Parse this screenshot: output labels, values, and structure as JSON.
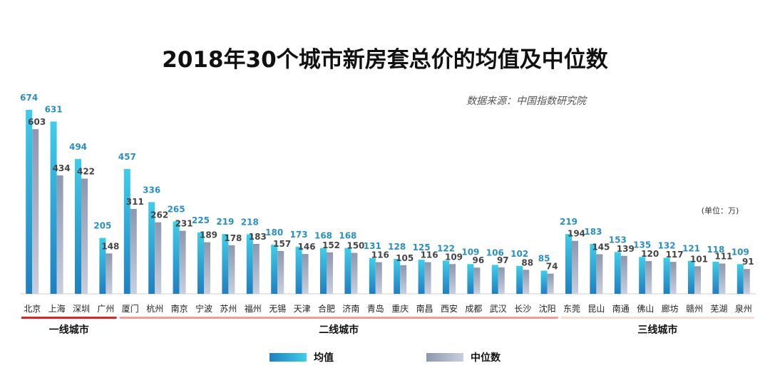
{
  "chart_data": {
    "type": "bar",
    "title": "2018年30个城市新房套总价的均值及中位数",
    "source": "数据来源：中国指数研究院",
    "unit": "(单位：万)",
    "categories": [
      "北京",
      "上海",
      "深圳",
      "广州",
      "厦门",
      "杭州",
      "南京",
      "宁波",
      "苏州",
      "福州",
      "无锡",
      "天津",
      "合肥",
      "济南",
      "青岛",
      "重庆",
      "南昌",
      "西安",
      "成都",
      "武汉",
      "长沙",
      "沈阳",
      "东莞",
      "昆山",
      "南通",
      "佛山",
      "廊坊",
      "赣州",
      "芜湖",
      "泉州"
    ],
    "series": [
      {
        "name": "均值",
        "values": [
          674,
          631,
          494,
          205,
          457,
          336,
          265,
          225,
          219,
          218,
          180,
          173,
          168,
          168,
          131,
          128,
          125,
          122,
          109,
          106,
          102,
          85,
          219,
          183,
          153,
          135,
          132,
          121,
          118,
          109
        ]
      },
      {
        "name": "中位数",
        "values": [
          603,
          434,
          422,
          148,
          311,
          262,
          231,
          189,
          178,
          183,
          157,
          146,
          152,
          150,
          116,
          105,
          116,
          109,
          96,
          97,
          88,
          74,
          194,
          145,
          139,
          120,
          117,
          101,
          111,
          91
        ]
      }
    ],
    "tiers": [
      {
        "name": "一线城市",
        "start": 0,
        "end": 3,
        "color": "#d42a2a"
      },
      {
        "name": "二线城市",
        "start": 4,
        "end": 21,
        "color": "#ef9e96"
      },
      {
        "name": "三线城市",
        "start": 22,
        "end": 29,
        "color": "#f5dccd"
      }
    ],
    "ylim": [
      0,
      700
    ],
    "colors": {
      "mean": "#2a8fc4",
      "mean_light": "#36c2e6",
      "median": "#9aa6bc",
      "median_light": "#c9d0dd"
    }
  }
}
